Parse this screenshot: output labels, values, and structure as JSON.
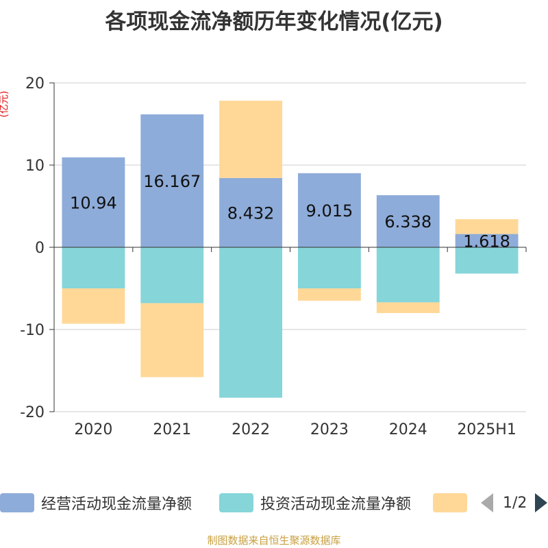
{
  "title": "各项现金流净额历年变化情况(亿元)",
  "unit_label": "(亿元)",
  "source": "制图数据来自恒生聚源数据库",
  "legend": {
    "items": [
      {
        "label": "经营活动现金流量净额",
        "color": "#8eacd9"
      },
      {
        "label": "投资活动现金流量净额",
        "color": "#86d5d9"
      },
      {
        "label": "",
        "color": "#ffd898"
      }
    ],
    "page": "1/2"
  },
  "chart_data": {
    "type": "bar",
    "stacked": true,
    "categories": [
      "2020",
      "2021",
      "2022",
      "2023",
      "2024",
      "2025H1"
    ],
    "ylim": [
      -20,
      20
    ],
    "yticks": [
      -20,
      -10,
      0,
      10,
      20
    ],
    "ytick_labels": [
      "-20",
      "-10",
      "0",
      "10",
      "20"
    ],
    "grid": true,
    "legend_position": "bottom",
    "series": [
      {
        "name": "经营活动现金流量净额",
        "color": "#8eacd9",
        "values": [
          10.94,
          16.167,
          8.432,
          9.015,
          6.338,
          1.618
        ],
        "labels": [
          "10.94",
          "16.167",
          "8.432",
          "9.015",
          "6.338",
          "1.618"
        ]
      },
      {
        "name": "投资活动现金流量净额",
        "color": "#86d5d9",
        "values": [
          -5.0,
          -6.8,
          -18.3,
          -5.0,
          -6.7,
          -3.2
        ]
      },
      {
        "color": "#ffd898",
        "values": [
          -4.3,
          -9.0,
          9.4,
          -1.5,
          -1.3,
          1.8
        ]
      }
    ]
  }
}
